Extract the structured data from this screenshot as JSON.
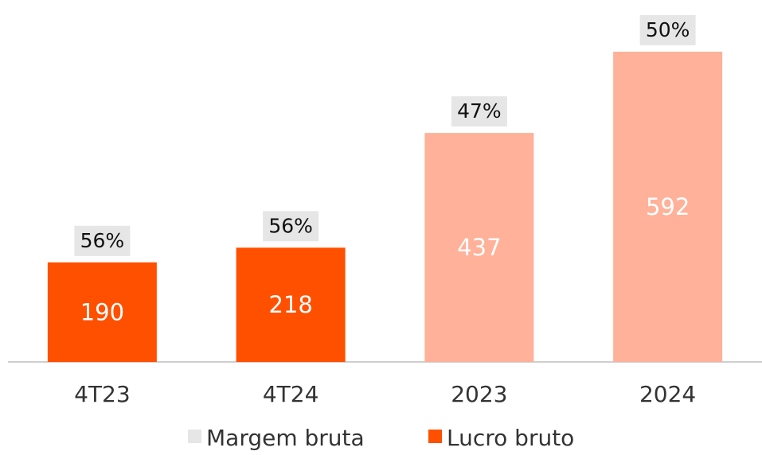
{
  "chart_data": {
    "type": "bar",
    "categories": [
      "4T23",
      "4T24",
      "2023",
      "2024"
    ],
    "series": [
      {
        "name": "Margem bruta",
        "color": "#e6e6e6",
        "values": [
          56,
          56,
          47,
          50
        ],
        "value_labels": [
          "56%",
          "56%",
          "47%",
          "50%"
        ]
      },
      {
        "name": "Lucro bruto",
        "color": "#ff5000",
        "values": [
          190,
          218,
          437,
          592
        ]
      }
    ],
    "colors": [
      "#ff5000",
      "#ff5000",
      "#ffb199",
      "#ffb199"
    ]
  }
}
